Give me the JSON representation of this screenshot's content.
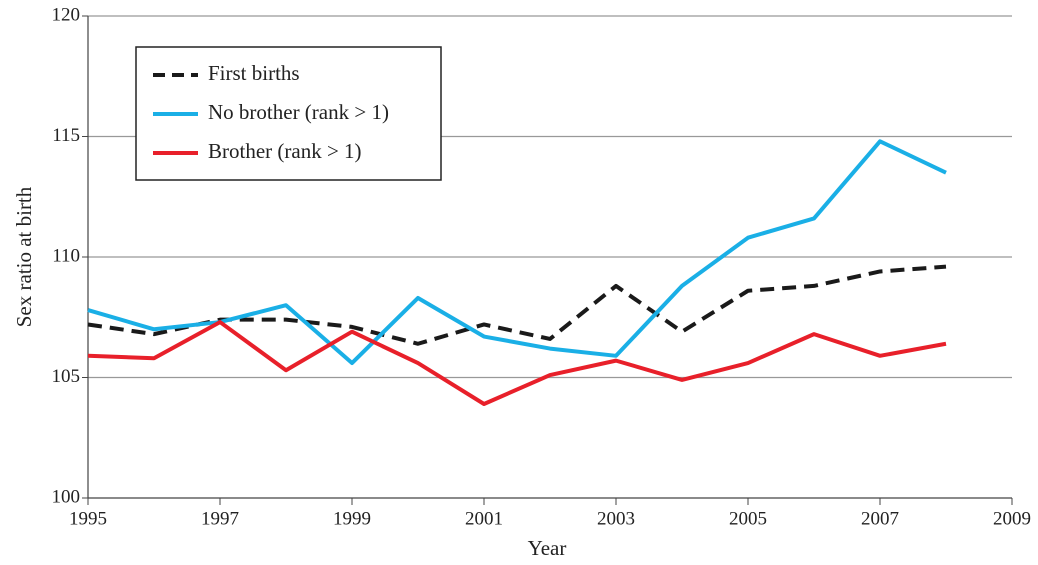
{
  "chart_data": {
    "type": "line",
    "x": [
      1995,
      1996,
      1997,
      1998,
      1999,
      2000,
      2001,
      2002,
      2003,
      2004,
      2005,
      2006,
      2007,
      2008
    ],
    "series": [
      {
        "name": "First births",
        "color": "#1a1a1a",
        "dashed": true,
        "values": [
          107.2,
          106.8,
          107.4,
          107.4,
          107.1,
          106.4,
          107.2,
          106.6,
          108.8,
          106.9,
          108.6,
          108.8,
          109.4,
          109.6
        ]
      },
      {
        "name": "No brother (rank > 1)",
        "color": "#1aafe6",
        "values": [
          107.8,
          107.0,
          107.3,
          108.0,
          105.6,
          108.3,
          106.7,
          106.2,
          105.9,
          108.8,
          110.8,
          111.6,
          114.8,
          113.5
        ]
      },
      {
        "name": "Brother (rank > 1)",
        "color": "#e8202a",
        "values": [
          105.9,
          105.8,
          107.3,
          105.3,
          106.9,
          105.6,
          103.9,
          105.1,
          105.7,
          104.9,
          105.6,
          106.8,
          105.9,
          106.4
        ]
      }
    ],
    "xlabel": "Year",
    "ylabel": "Sex ratio at birth",
    "xlim": [
      1995,
      2009
    ],
    "xticks": [
      1995,
      1997,
      1999,
      2001,
      2003,
      2005,
      2007,
      2009
    ],
    "ylim": [
      100,
      120
    ],
    "yticks": [
      100,
      105,
      110,
      115,
      120
    ],
    "grid": true,
    "legend": "upper left"
  }
}
